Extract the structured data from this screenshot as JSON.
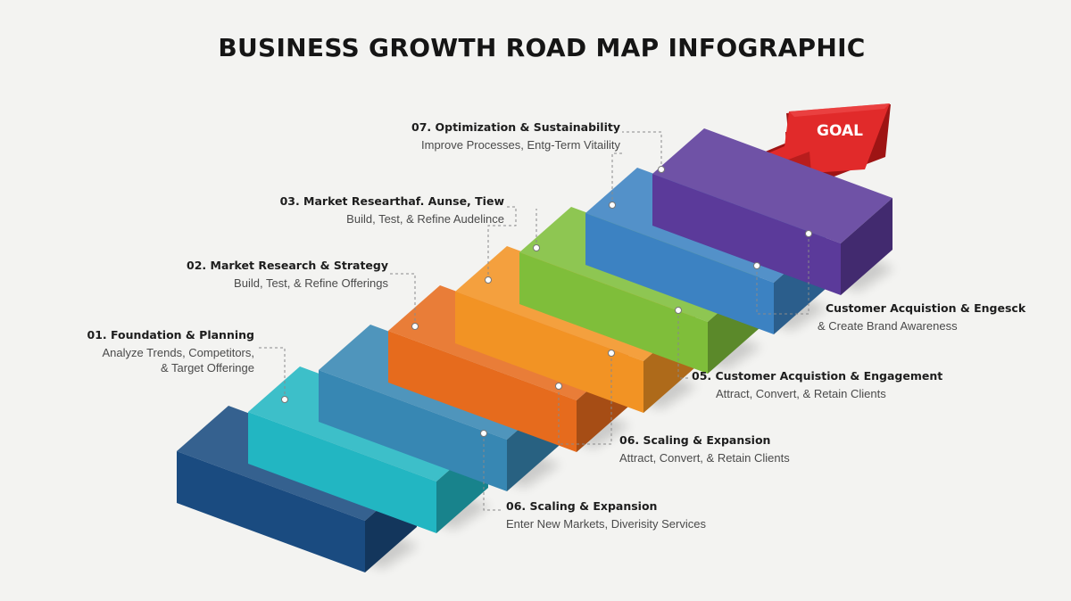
{
  "title": "BUSINESS GROWTH ROAD MAP INFOGRAPHIC",
  "goal_label": "GOAL",
  "colors": {
    "background": "#f3f3f1",
    "goal_arrow": "#e12a2a",
    "steps": [
      "#1a4b80",
      "#22b6c2",
      "#3787b3",
      "#e66b1d",
      "#f29324",
      "#7fbe3a",
      "#3c82c2",
      "#5b3a9a"
    ]
  },
  "labels": {
    "foundation": {
      "heading": "01. Foundation & Planning",
      "line1": "Analyze Trends, Competitors,",
      "line2": "& Target Offeringe"
    },
    "strategy": {
      "heading": "02. Market Research & Strategy",
      "line1": "Build, Test, & Refine Offerings"
    },
    "research": {
      "heading": "03. Market Researthaf. Aunse, Tiew",
      "line1": "Build, Test, & Refine Audelince"
    },
    "optimization": {
      "heading": "07. Optimization & Sustainability",
      "line1": "Improve Processes, Entg-Term Vitaility"
    },
    "acquisition_top": {
      "heading": "Customer Acquistion & Engesck",
      "line1": "& Create Brand Awareness"
    },
    "acquisition": {
      "heading": "05. Customer Acquistion & Engagement",
      "line1": "Attract, Convert, & Retain Clients"
    },
    "scaling_a": {
      "heading": "06. Scaling & Expansion",
      "line1": "Attract, Convert, & Retain Clients"
    },
    "scaling_b": {
      "heading": "06. Scaling & Expansion",
      "line1": "Enter New Markets, Diverisity Services"
    }
  }
}
